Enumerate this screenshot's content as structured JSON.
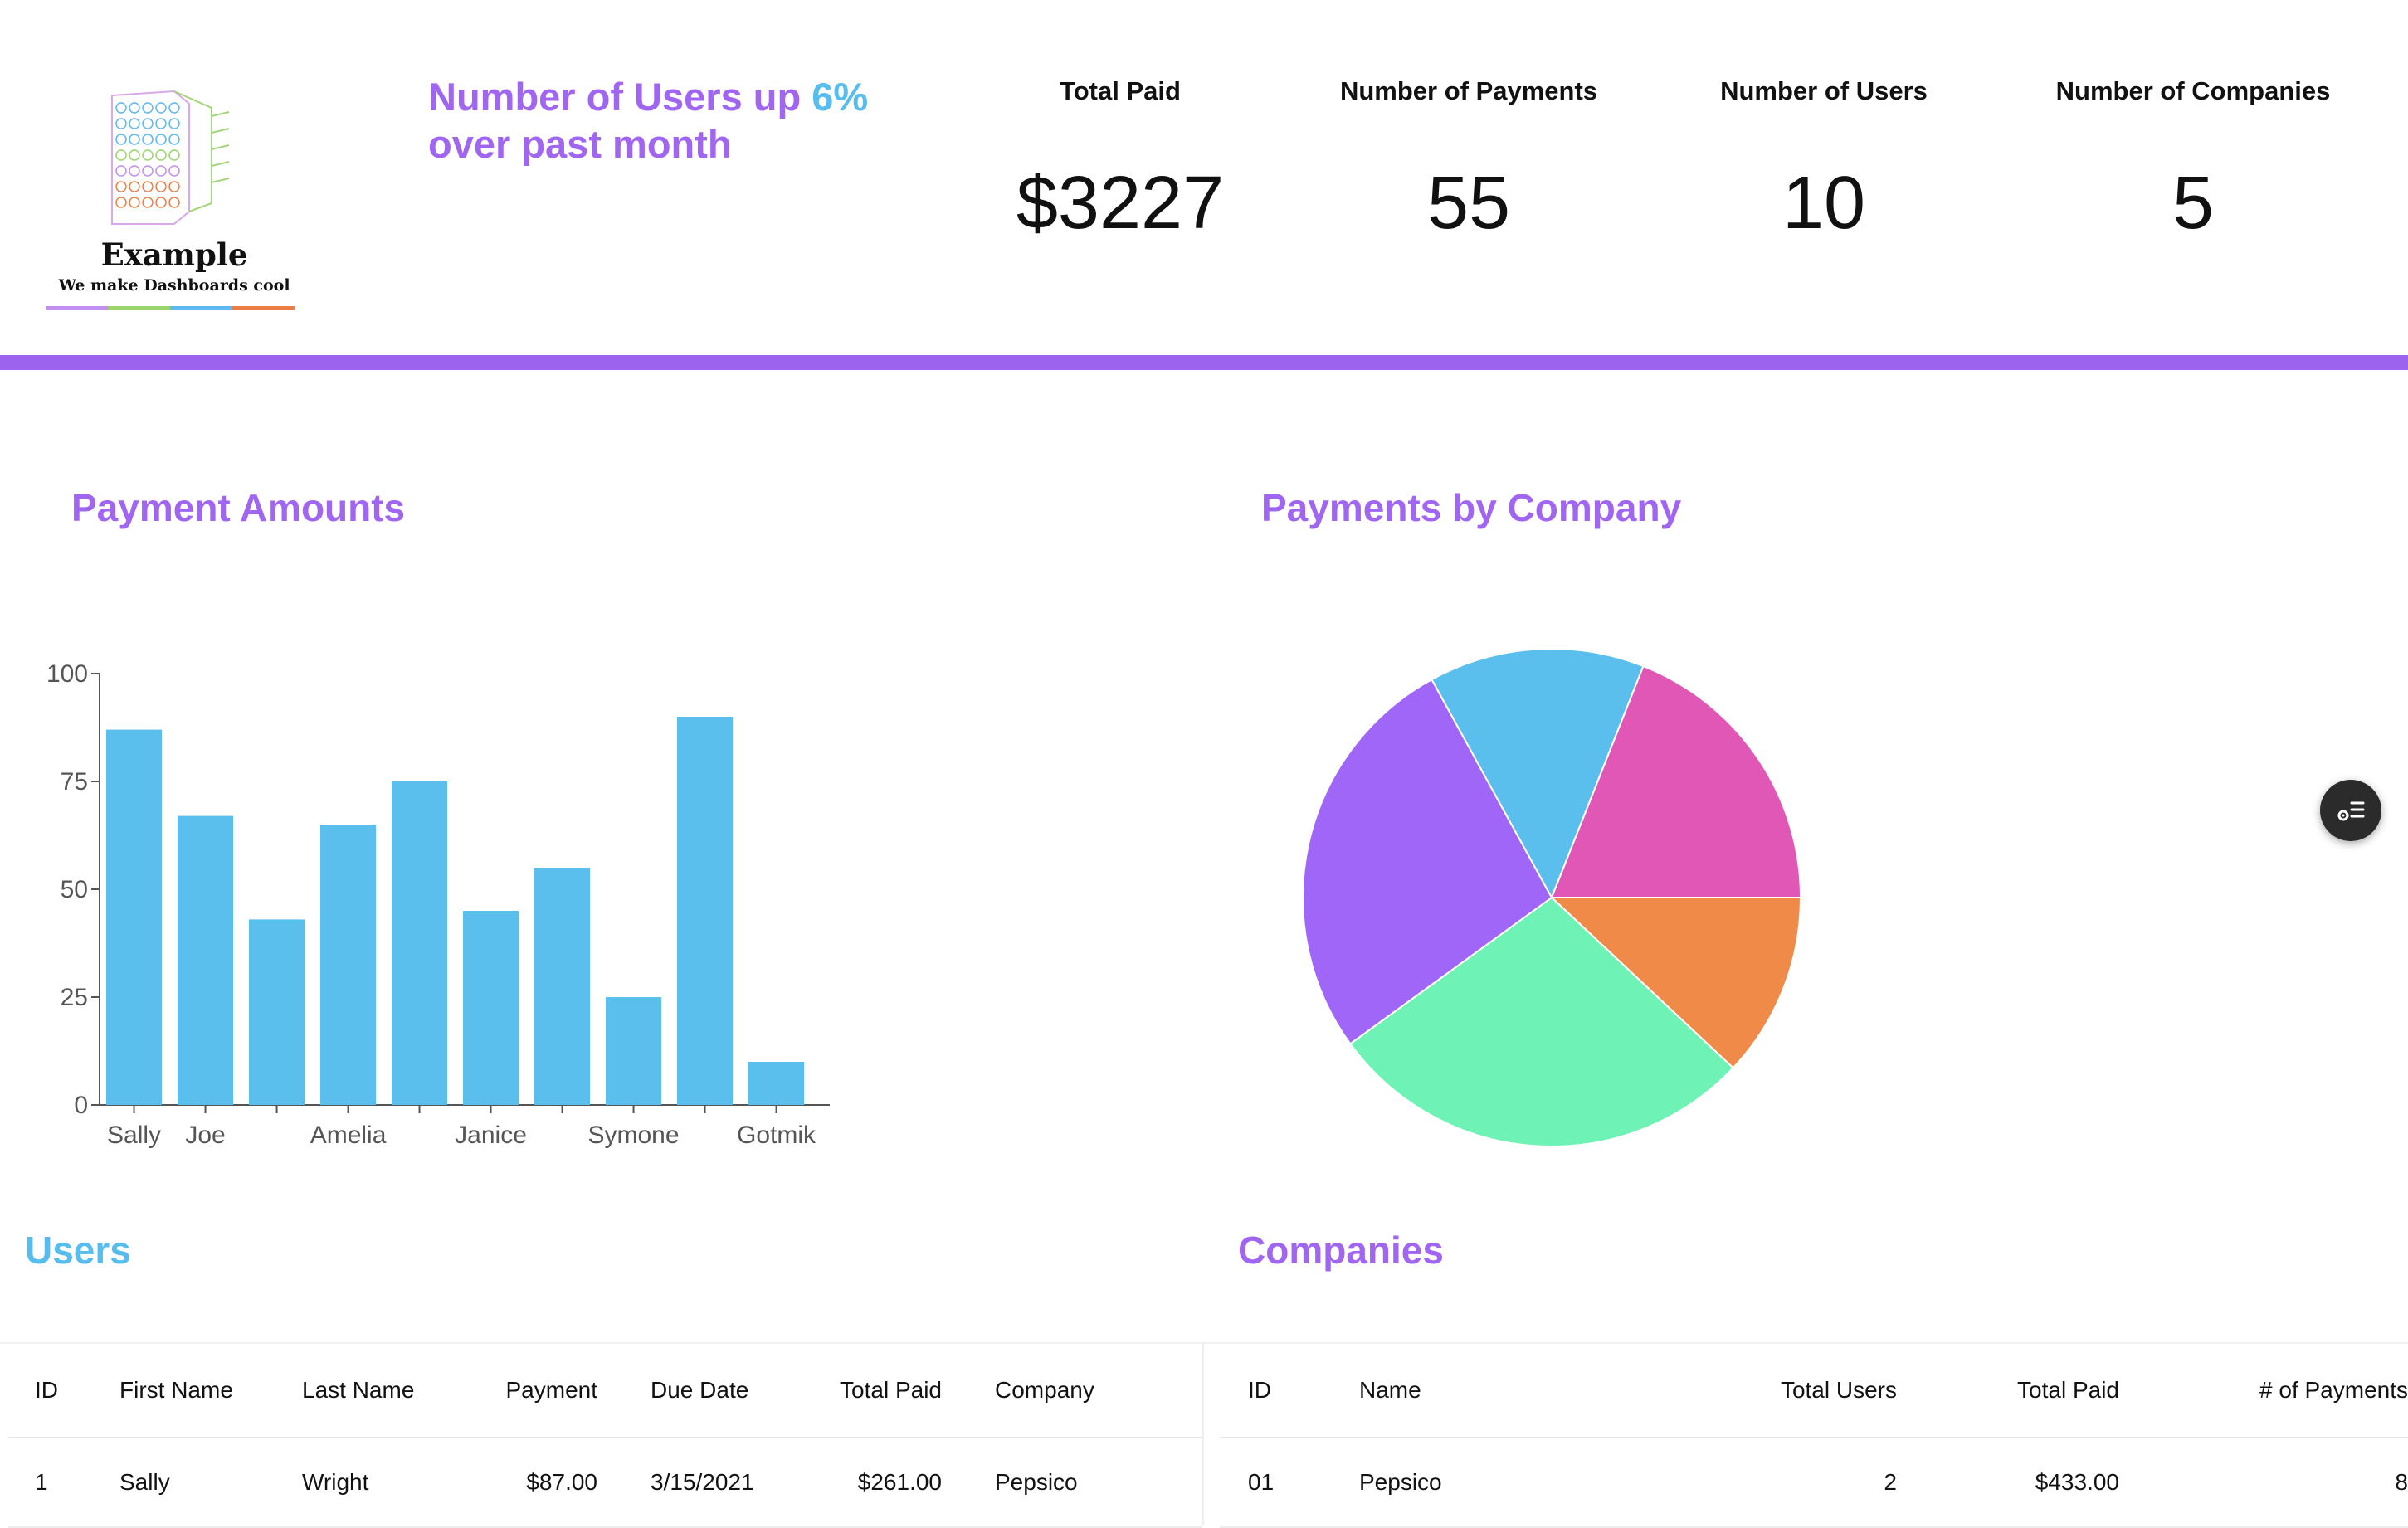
{
  "brand": {
    "name": "Example",
    "tagline": "We make Dashboards cool",
    "line_colors": [
      "#c48df0",
      "#9ad46c",
      "#5cb8ef",
      "#ef7e46"
    ]
  },
  "headline": {
    "text_before": "Number of Users up ",
    "highlight": "6%",
    "text_after": " over past month",
    "color": "#a066f2",
    "highlight_color": "#57bdee"
  },
  "stats": [
    {
      "label": "Total Paid",
      "value": "$3227"
    },
    {
      "label": "Number of Payments",
      "value": "55"
    },
    {
      "label": "Number of Users",
      "value": "10"
    },
    {
      "label": "Number of Companies",
      "value": "5"
    }
  ],
  "accent_color": "#9c63ee",
  "sections": {
    "payment_amounts": "Payment Amounts",
    "payments_by_company": "Payments by Company",
    "users": "Users",
    "companies": "Companies"
  },
  "chart_data": [
    {
      "type": "bar",
      "title": "Payment Amounts",
      "categories": [
        "Sally",
        "Joe",
        "",
        "Amelia",
        "",
        "Janice",
        "",
        "Symone",
        "",
        "Gotmik"
      ],
      "values": [
        87,
        67,
        43,
        65,
        75,
        45,
        55,
        25,
        90,
        10
      ],
      "ylim": [
        0,
        100
      ],
      "yticks": [
        0,
        25,
        50,
        75,
        100
      ],
      "color": "#5bbfee",
      "grid": false
    },
    {
      "type": "pie",
      "title": "Payments by Company",
      "values": [
        12,
        28,
        27,
        14,
        19
      ],
      "colors": [
        "#ef8a48",
        "#6ef2b6",
        "#a066f7",
        "#5bbfee",
        "#e157b6"
      ],
      "legend": "none"
    }
  ],
  "users_table": {
    "columns": [
      "ID",
      "First Name",
      "Last Name",
      "Payment",
      "Due Date",
      "Total Paid",
      "Company"
    ],
    "rows": [
      [
        "1",
        "Sally",
        "Wright",
        "$87.00",
        "3/15/2021",
        "$261.00",
        "Pepsico"
      ]
    ]
  },
  "companies_table": {
    "columns": [
      "ID",
      "Name",
      "Total Users",
      "Total Paid",
      "# of Payments"
    ],
    "rows": [
      [
        "01",
        "Pepsico",
        "2",
        "$433.00",
        "8"
      ]
    ]
  },
  "fab_icon": "filter-list-icon"
}
